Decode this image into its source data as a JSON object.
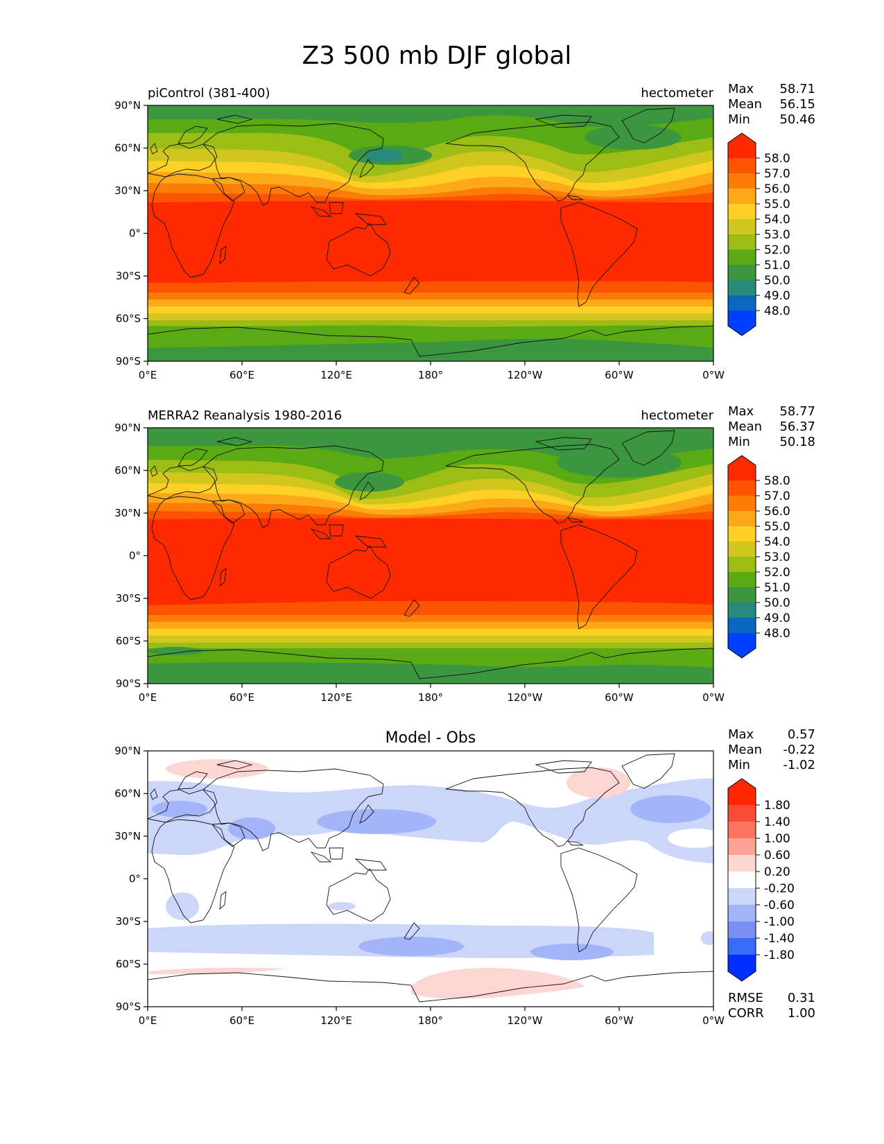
{
  "title": "Z3 500 mb DJF global",
  "x_ticks": [
    "0°E",
    "60°E",
    "120°E",
    "180°",
    "120°W",
    "60°W",
    "0°W"
  ],
  "y_ticks": [
    "90°N",
    "60°N",
    "30°N",
    "0°",
    "30°S",
    "60°S",
    "90°S"
  ],
  "panels": [
    {
      "title_left": "piControl (381-400)",
      "units": "hectometer",
      "stats": [
        {
          "label": "Max",
          "value": "58.71"
        },
        {
          "label": "Mean",
          "value": "56.15"
        },
        {
          "label": "Min",
          "value": "50.46"
        }
      ],
      "colorbar_labels": [
        "58.0",
        "57.0",
        "56.0",
        "55.0",
        "54.0",
        "53.0",
        "52.0",
        "51.0",
        "50.0",
        "49.0",
        "48.0"
      ]
    },
    {
      "title_left": "MERRA2 Reanalysis 1980-2016",
      "units": "hectometer",
      "stats": [
        {
          "label": "Max",
          "value": "58.77"
        },
        {
          "label": "Mean",
          "value": "56.37"
        },
        {
          "label": "Min",
          "value": "50.18"
        }
      ],
      "colorbar_labels": [
        "58.0",
        "57.0",
        "56.0",
        "55.0",
        "54.0",
        "53.0",
        "52.0",
        "51.0",
        "50.0",
        "49.0",
        "48.0"
      ]
    },
    {
      "title_center": "Model - Obs",
      "stats": [
        {
          "label": "Max",
          "value": "0.57"
        },
        {
          "label": "Mean",
          "value": "-0.22"
        },
        {
          "label": "Min",
          "value": "-1.02"
        }
      ],
      "colorbar_labels": [
        "1.80",
        "1.40",
        "1.00",
        "0.60",
        "0.20",
        "-0.20",
        "-0.60",
        "-1.00",
        "-1.40",
        "-1.80"
      ],
      "metrics": [
        {
          "label": "RMSE",
          "value": "0.31"
        },
        {
          "label": "CORR",
          "value": "1.00"
        }
      ]
    }
  ],
  "colors": {
    "abs_scale": [
      "#0040ff",
      "#0868c0",
      "#2a8a7a",
      "#3c9640",
      "#5aaa14",
      "#9cbc16",
      "#d0c61e",
      "#fcd024",
      "#fca818",
      "#fc7c08",
      "#fc5400",
      "#ff2a00"
    ],
    "diff_scale": [
      "#0030ff",
      "#3a6af8",
      "#7890f6",
      "#a4b4f8",
      "#ccd6fa",
      "#ffffff",
      "#fcd6d2",
      "#fca494",
      "#fc7460",
      "#fa4c34",
      "#ff2600"
    ]
  }
}
